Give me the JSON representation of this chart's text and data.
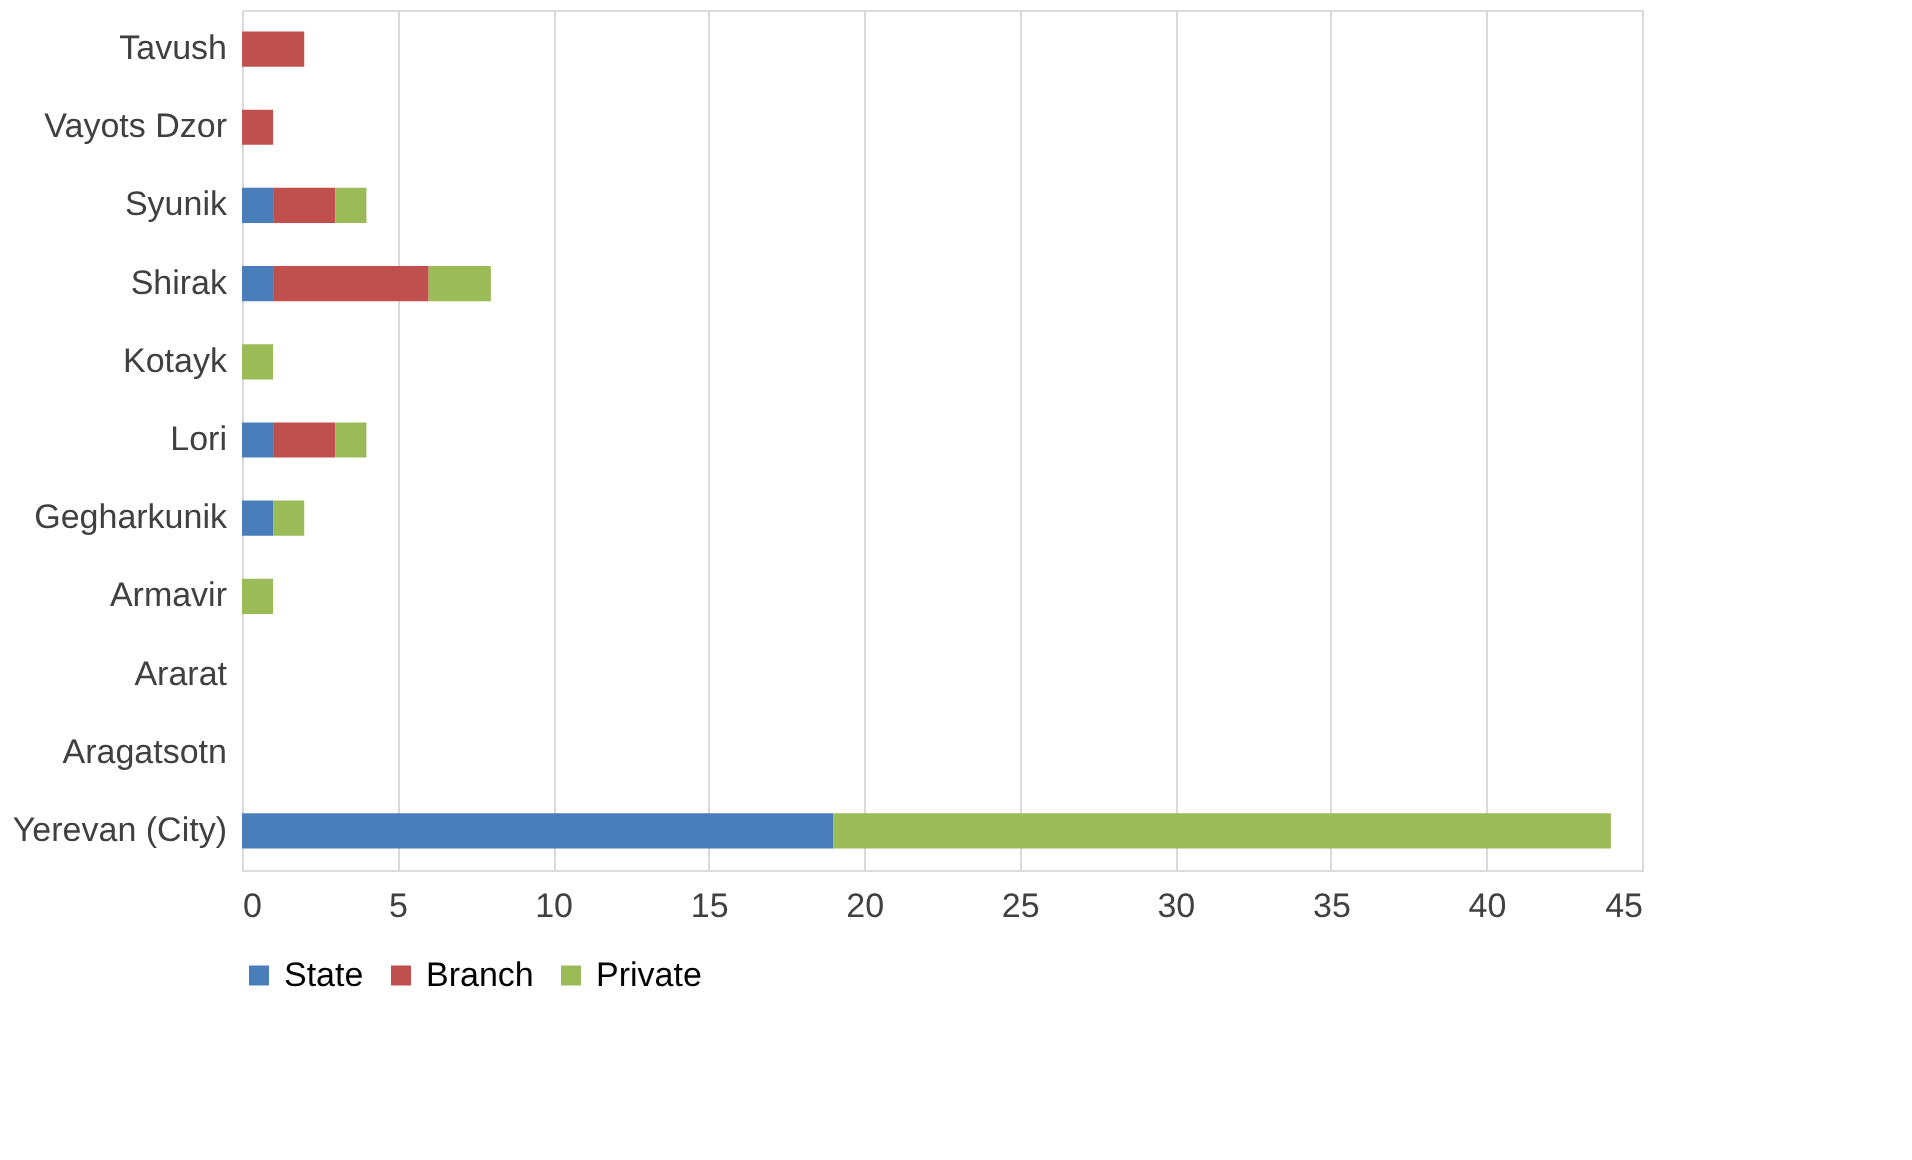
{
  "chart_data": {
    "type": "bar",
    "orientation": "horizontal",
    "stacked": true,
    "categories": [
      "Tavush",
      "Vayots Dzor",
      "Syunik",
      "Shirak",
      "Kotayk",
      "Lori",
      "Gegharkunik",
      "Armavir",
      "Ararat",
      "Aragatsotn",
      "Yerevan (City)"
    ],
    "series": [
      {
        "name": "State",
        "color": "#4a7ebb",
        "values": [
          0,
          0,
          1,
          1,
          0,
          1,
          1,
          0,
          0,
          0,
          19
        ]
      },
      {
        "name": "Branch",
        "color": "#c0504d",
        "values": [
          2,
          1,
          2,
          5,
          0,
          2,
          0,
          0,
          0,
          0,
          0
        ]
      },
      {
        "name": "Private",
        "color": "#9bbb59",
        "values": [
          0,
          0,
          1,
          2,
          1,
          1,
          1,
          1,
          0,
          0,
          25
        ]
      }
    ],
    "xlim": [
      0,
      45
    ],
    "xticks": [
      0,
      5,
      10,
      15,
      20,
      25,
      30,
      35,
      40,
      45
    ],
    "grid": "x",
    "legend": "bottom"
  }
}
